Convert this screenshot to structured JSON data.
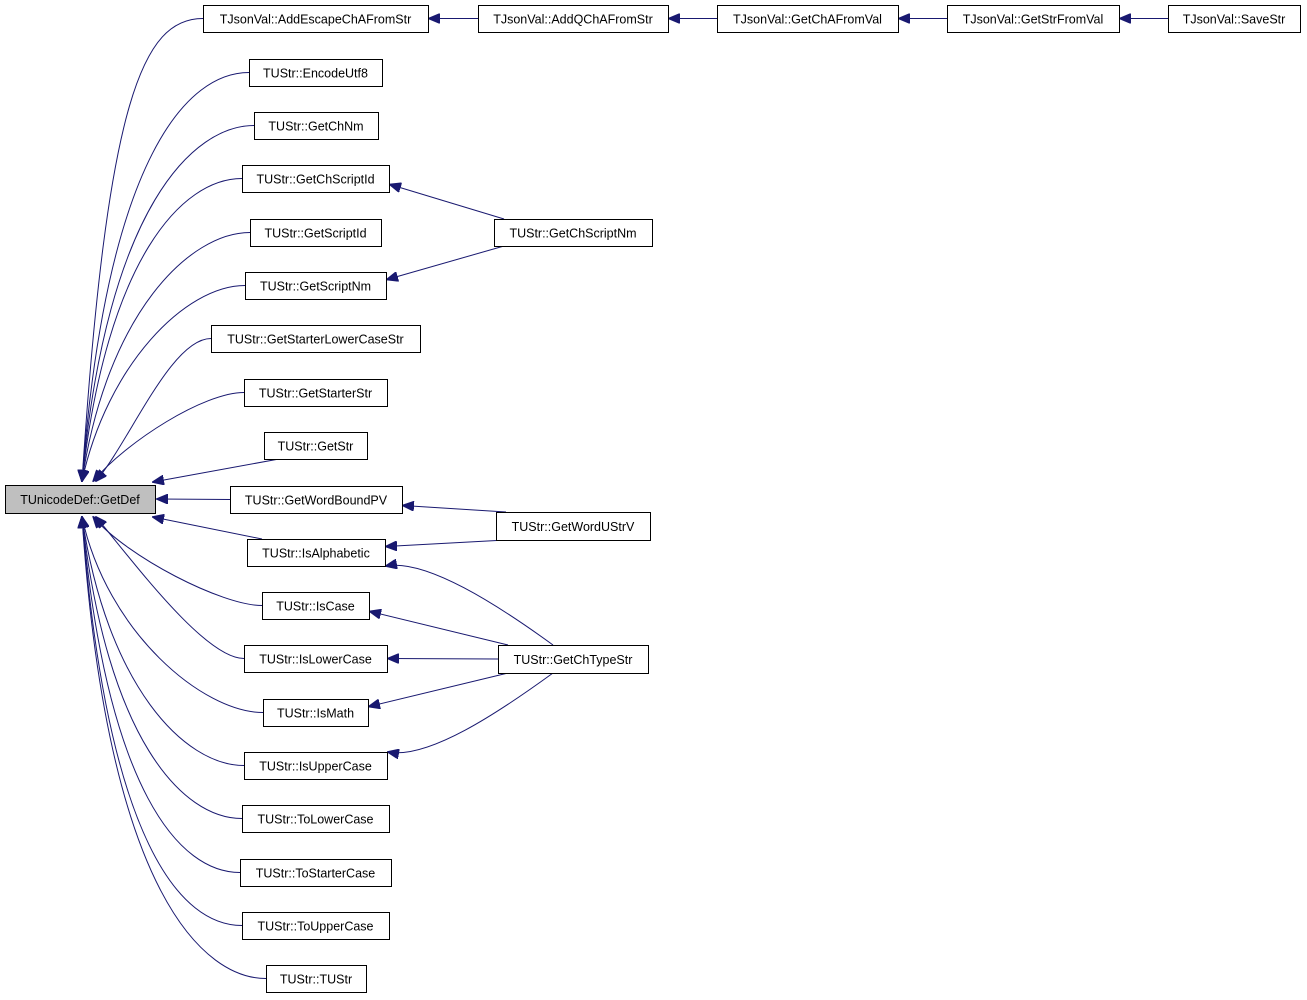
{
  "graph": {
    "edge_color": "#191970",
    "root_fill": "#bfbfbf",
    "nodes": [
      {
        "id": "root",
        "label": "TUnicodeDef::GetDef",
        "highlighted": true
      },
      {
        "id": "addEsc",
        "label": "TJsonVal::AddEscapeChAFromStr"
      },
      {
        "id": "encUtf8",
        "label": "TUStr::EncodeUtf8"
      },
      {
        "id": "getChNm",
        "label": "TUStr::GetChNm"
      },
      {
        "id": "getChScriptId",
        "label": "TUStr::GetChScriptId"
      },
      {
        "id": "getScriptId",
        "label": "TUStr::GetScriptId"
      },
      {
        "id": "getScriptNm",
        "label": "TUStr::GetScriptNm"
      },
      {
        "id": "getStarterLower",
        "label": "TUStr::GetStarterLowerCaseStr"
      },
      {
        "id": "getStarterStr",
        "label": "TUStr::GetStarterStr"
      },
      {
        "id": "getStr",
        "label": "TUStr::GetStr"
      },
      {
        "id": "getWordBoundPV",
        "label": "TUStr::GetWordBoundPV"
      },
      {
        "id": "isAlpha",
        "label": "TUStr::IsAlphabetic"
      },
      {
        "id": "isCase",
        "label": "TUStr::IsCase"
      },
      {
        "id": "isLower",
        "label": "TUStr::IsLowerCase"
      },
      {
        "id": "isMath",
        "label": "TUStr::IsMath"
      },
      {
        "id": "isUpper",
        "label": "TUStr::IsUpperCase"
      },
      {
        "id": "toLower",
        "label": "TUStr::ToLowerCase"
      },
      {
        "id": "toStarter",
        "label": "TUStr::ToStarterCase"
      },
      {
        "id": "toUpper",
        "label": "TUStr::ToUpperCase"
      },
      {
        "id": "tustr",
        "label": "TUStr::TUStr"
      },
      {
        "id": "addQ",
        "label": "TJsonVal::AddQChAFromStr"
      },
      {
        "id": "getChAFromVal",
        "label": "TJsonVal::GetChAFromVal"
      },
      {
        "id": "getStrFromVal",
        "label": "TJsonVal::GetStrFromVal"
      },
      {
        "id": "saveStr",
        "label": "TJsonVal::SaveStr"
      },
      {
        "id": "getChScriptNm",
        "label": "TUStr::GetChScriptNm"
      },
      {
        "id": "getWordUStrV",
        "label": "TUStr::GetWordUStrV"
      },
      {
        "id": "getChTypeStr",
        "label": "TUStr::GetChTypeStr"
      }
    ],
    "edges": [
      [
        "addEsc",
        "root"
      ],
      [
        "encUtf8",
        "root"
      ],
      [
        "getChNm",
        "root"
      ],
      [
        "getChScriptId",
        "root"
      ],
      [
        "getScriptId",
        "root"
      ],
      [
        "getScriptNm",
        "root"
      ],
      [
        "getStarterLower",
        "root"
      ],
      [
        "getStarterStr",
        "root"
      ],
      [
        "getStr",
        "root"
      ],
      [
        "getWordBoundPV",
        "root"
      ],
      [
        "isAlpha",
        "root"
      ],
      [
        "isCase",
        "root"
      ],
      [
        "isLower",
        "root"
      ],
      [
        "isMath",
        "root"
      ],
      [
        "isUpper",
        "root"
      ],
      [
        "toLower",
        "root"
      ],
      [
        "toStarter",
        "root"
      ],
      [
        "toUpper",
        "root"
      ],
      [
        "tustr",
        "root"
      ],
      [
        "addQ",
        "addEsc"
      ],
      [
        "getChAFromVal",
        "addQ"
      ],
      [
        "getStrFromVal",
        "getChAFromVal"
      ],
      [
        "saveStr",
        "getStrFromVal"
      ],
      [
        "getChScriptNm",
        "getChScriptId"
      ],
      [
        "getChScriptNm",
        "getScriptNm"
      ],
      [
        "getWordUStrV",
        "getWordBoundPV"
      ],
      [
        "getWordUStrV",
        "isAlpha"
      ],
      [
        "getChTypeStr",
        "isAlpha"
      ],
      [
        "getChTypeStr",
        "isCase"
      ],
      [
        "getChTypeStr",
        "isLower"
      ],
      [
        "getChTypeStr",
        "isMath"
      ],
      [
        "getChTypeStr",
        "isUpper"
      ]
    ]
  }
}
